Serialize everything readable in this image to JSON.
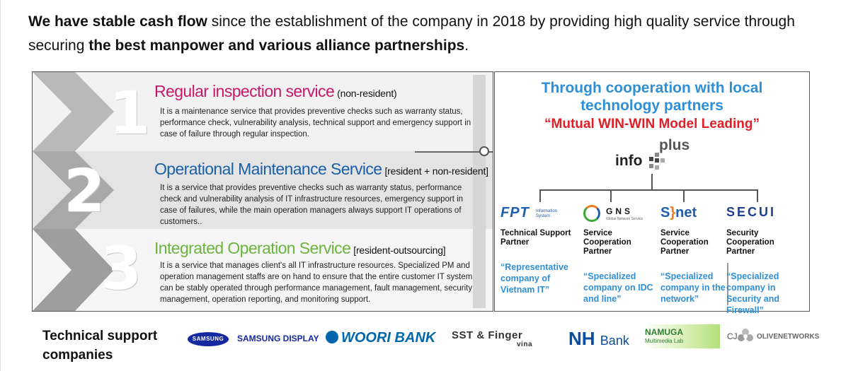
{
  "headline": {
    "bold1": "We have stable cash flow",
    "text1": " since the establishment of the company in 2018 by providing high quality service through securing ",
    "bold2": "the best manpower and various alliance partnerships",
    "text2": "."
  },
  "services": [
    {
      "number": "1",
      "title": "Regular inspection service",
      "qualifier": "(non-resident)",
      "description": "It is a maintenance service that provides preventive checks such as warranty status, performance check, vulnerability analysis, technical support and emergency support in case of failure through regular inspection.",
      "color": "#c8186c"
    },
    {
      "number": "2",
      "title": "Operational Maintenance Service",
      "qualifier": "[resident + non-resident]",
      "description": "It is a service that provides preventive checks such as warranty status, performance check and vulnerability analysis of IT infrastructure resources, emergency support in case of failures, while the main operation managers always support IT operations of customers..",
      "color": "#1b5fa8"
    },
    {
      "number": "3",
      "title": "Integrated Operation Service",
      "qualifier": "[resident-outsourcing]",
      "description": "It is a service that manages client's all IT infrastructure resources. Specialized PM and operation management staffs are on hand to ensure that the entire customer IT system can be stably operated through performance management, fault management, security management, operation reporting, and monitoring support.",
      "color": "#6db33f"
    }
  ],
  "partners_panel": {
    "title": "Through cooperation with local technology partners",
    "subtitle": "“Mutual WIN-WIN Model Leading”",
    "center_logo": {
      "info": "info",
      "plus": "plus"
    },
    "partners": [
      {
        "logo_text": "FPT",
        "logo_sub": "Information System",
        "role": "Technical Support Partner",
        "description": "“Representative company of Vietnam IT”"
      },
      {
        "logo_text": "GNS",
        "logo_sub": "Global Network Service",
        "role": "Service Cooperation Partner",
        "description": "“Specialized company on IDC and line”"
      },
      {
        "logo_text_s": "S",
        "logo_text_brace": "}",
        "logo_text_net": "net",
        "role": "Service Cooperation Partner",
        "description": "“Specialized company in the network”"
      },
      {
        "logo_text": "SECUI",
        "role": "Security Cooperation Partner",
        "description": "“Specialized company in Security and Firewall”"
      }
    ],
    "title_color": "#2f8fd6",
    "subtitle_color": "#e01f26"
  },
  "footer": {
    "label": "Technical support companies",
    "logos": {
      "samsung": "SAMSUNG",
      "samsung_display": "SAMSUNG DISPLAY",
      "woori": "WOORI BANK",
      "sst": "SST & Finger",
      "sst_sub": "vina",
      "nh": "NH",
      "nh_bank": "Bank",
      "namuga": "NAMUGA",
      "namuga_sub": "Multimedia Lab",
      "cj": "CJ",
      "olive": "OLIVENETWORKS"
    }
  }
}
